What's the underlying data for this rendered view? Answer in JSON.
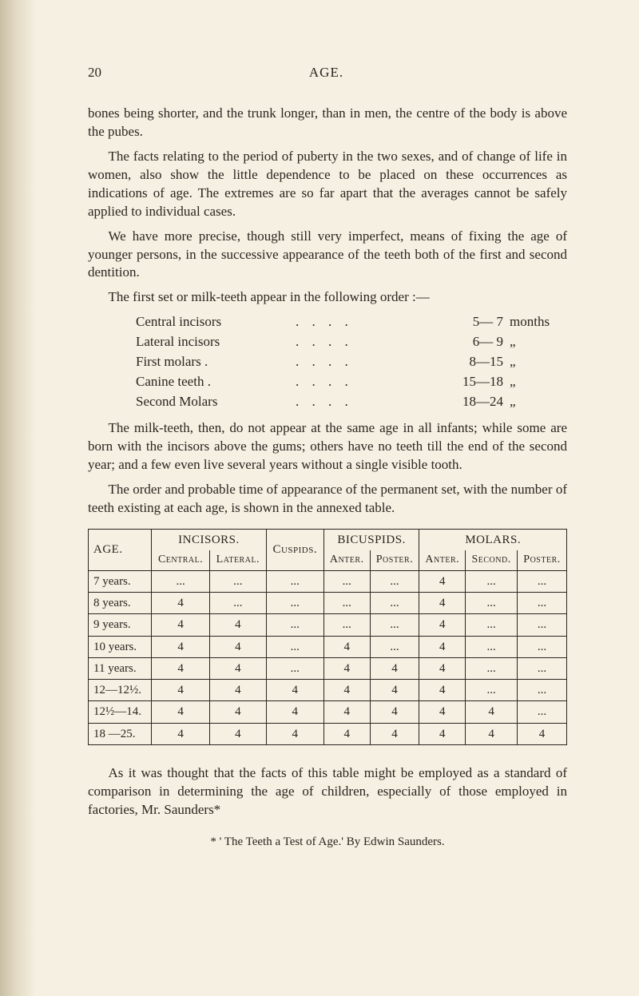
{
  "header": {
    "page_number": "20",
    "running_title": "AGE."
  },
  "paragraphs": {
    "p1": "bones being shorter, and the trunk longer, than in men, the centre of the body is above the pubes.",
    "p2": "The facts relating to the period of puberty in the two sexes, and of change of life in women, also show the little dependence to be placed on these occurrences as indications of age. The extremes are so far apart that the averages cannot be safely applied to individual cases.",
    "p3": "We have more precise, though still very imperfect, means of fixing the age of younger persons, in the successive appearance of the teeth both of the first and second dentition.",
    "p4": "The first set or milk-teeth appear in the following order :—",
    "p5": "The milk-teeth, then, do not appear at the same age in all infants; while some are born with the incisors above the gums; others have no teeth till the end of the second year; and a few even live several years without a single visible tooth.",
    "p6": "The order and probable time of appearance of the permanent set, with the number of teeth existing at each age, is shown in the annexed table.",
    "p7": "As it was thought that the facts of this table might be employed as a standard of comparison in determining the age of children, especially of those employed in factories, Mr. Saunders*"
  },
  "milk_teeth_list": {
    "items": [
      {
        "label": "Central incisors",
        "dots": ".   .   .   .",
        "value": "5— 7",
        "unit": "months"
      },
      {
        "label": "Lateral incisors",
        "dots": ".   .   .   .",
        "value": "6— 9",
        "unit": "„"
      },
      {
        "label": "First molars .",
        "dots": ".   .   .   .",
        "value": "8—15",
        "unit": "„"
      },
      {
        "label": "Canine teeth .",
        "dots": ".   .   .   .",
        "value": "15—18",
        "unit": "„"
      },
      {
        "label": "Second Molars",
        "dots": ".   .   .   .",
        "value": "18—24",
        "unit": "„"
      }
    ]
  },
  "table": {
    "headers": {
      "age": "AGE.",
      "incisors": "INCISORS.",
      "cuspids": "Cuspids.",
      "bicuspids": "BICUSPIDS.",
      "molars": "MOLARS.",
      "central": "Central.",
      "lateral": "Lateral.",
      "anter": "Anter.",
      "poster": "Poster.",
      "second": "Second."
    },
    "rows": [
      {
        "age": "7 years.",
        "c": "...",
        "l": "...",
        "cu": "...",
        "ba": "...",
        "bp": "...",
        "ma": "4",
        "ms": "...",
        "mp": "..."
      },
      {
        "age": "8 years.",
        "c": "4",
        "l": "...",
        "cu": "...",
        "ba": "...",
        "bp": "...",
        "ma": "4",
        "ms": "...",
        "mp": "..."
      },
      {
        "age": "9 years.",
        "c": "4",
        "l": "4",
        "cu": "...",
        "ba": "...",
        "bp": "...",
        "ma": "4",
        "ms": "...",
        "mp": "..."
      },
      {
        "age": "10 years.",
        "c": "4",
        "l": "4",
        "cu": "...",
        "ba": "4",
        "bp": "...",
        "ma": "4",
        "ms": "...",
        "mp": "..."
      },
      {
        "age": "11 years.",
        "c": "4",
        "l": "4",
        "cu": "...",
        "ba": "4",
        "bp": "4",
        "ma": "4",
        "ms": "...",
        "mp": "..."
      },
      {
        "age": "12—12½.",
        "c": "4",
        "l": "4",
        "cu": "4",
        "ba": "4",
        "bp": "4",
        "ma": "4",
        "ms": "...",
        "mp": "..."
      },
      {
        "age": "12½—14.",
        "c": "4",
        "l": "4",
        "cu": "4",
        "ba": "4",
        "bp": "4",
        "ma": "4",
        "ms": "4",
        "mp": "..."
      },
      {
        "age": "18 —25.",
        "c": "4",
        "l": "4",
        "cu": "4",
        "ba": "4",
        "bp": "4",
        "ma": "4",
        "ms": "4",
        "mp": "4"
      }
    ]
  },
  "footnote": "* ' The Teeth a Test of Age.'   By Edwin Saunders."
}
